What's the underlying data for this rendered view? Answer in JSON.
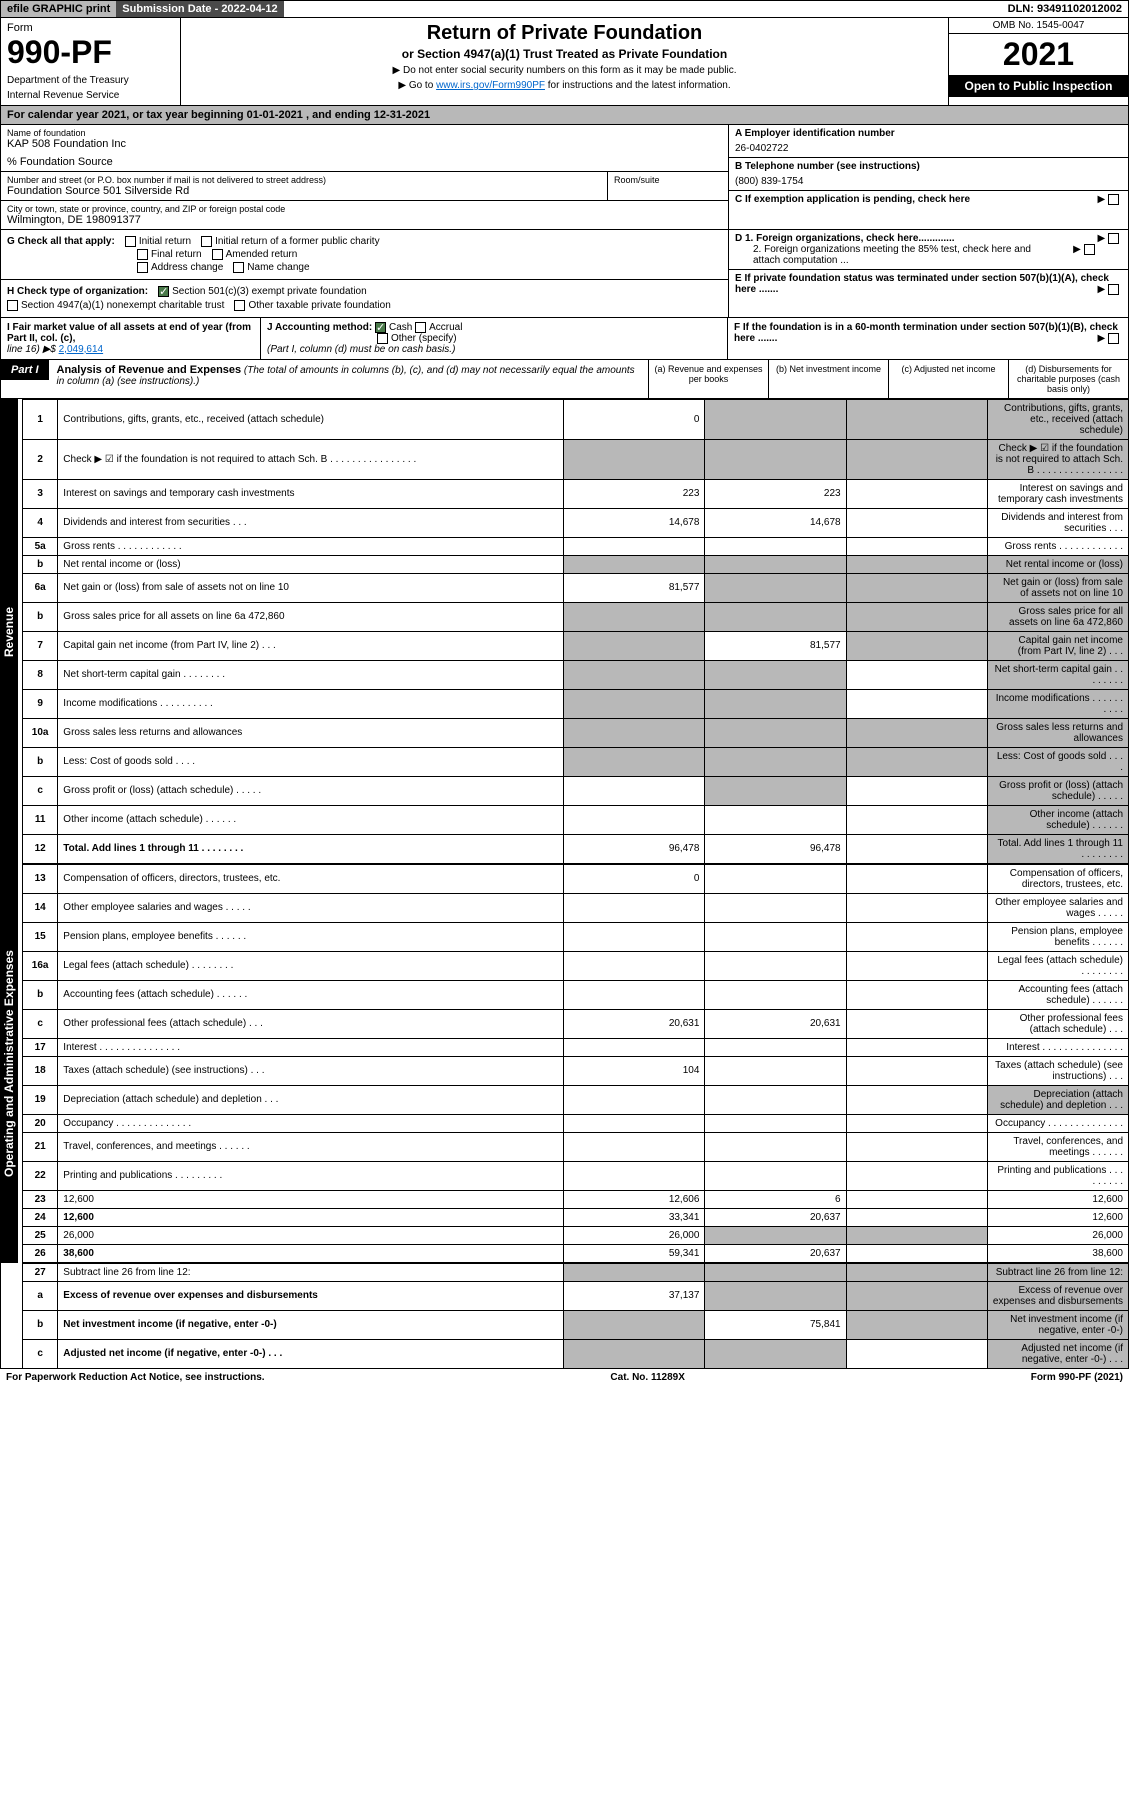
{
  "topbar": {
    "efile": "efile GRAPHIC print",
    "sub_lbl": "Submission Date - 2022-04-12",
    "dln": "DLN: 93491102012002"
  },
  "header": {
    "form_word": "Form",
    "form_no": "990-PF",
    "dept": "Department of the Treasury",
    "irs": "Internal Revenue Service",
    "title": "Return of Private Foundation",
    "subtitle": "or Section 4947(a)(1) Trust Treated as Private Foundation",
    "note1": "▶ Do not enter social security numbers on this form as it may be made public.",
    "note2_pre": "▶ Go to ",
    "note2_link": "www.irs.gov/Form990PF",
    "note2_post": " for instructions and the latest information.",
    "omb": "OMB No. 1545-0047",
    "year": "2021",
    "open": "Open to Public Inspection"
  },
  "calyear": "For calendar year 2021, or tax year beginning 01-01-2021                           , and ending 12-31-2021",
  "org": {
    "name_lbl": "Name of foundation",
    "name": "KAP 508 Foundation Inc",
    "src": "% Foundation Source",
    "addr_lbl": "Number and street (or P.O. box number if mail is not delivered to street address)",
    "addr": "Foundation Source 501 Silverside Rd",
    "room_lbl": "Room/suite",
    "city_lbl": "City or town, state or province, country, and ZIP or foreign postal code",
    "city": "Wilmington, DE  198091377",
    "a_lbl": "A Employer identification number",
    "ein": "26-0402722",
    "b_lbl": "B Telephone number (see instructions)",
    "phone": "(800) 839-1754",
    "c_lbl": "C If exemption application is pending, check here",
    "d1": "D 1. Foreign organizations, check here.............",
    "d2": "2. Foreign organizations meeting the 85% test, check here and attach computation ...",
    "e_lbl": "E  If private foundation status was terminated under section 507(b)(1)(A), check here .......",
    "f_lbl": "F  If the foundation is in a 60-month termination under section 507(b)(1)(B), check here ......."
  },
  "g": {
    "lbl": "G Check all that apply:",
    "o1": "Initial return",
    "o2": "Initial return of a former public charity",
    "o3": "Final return",
    "o4": "Amended return",
    "o5": "Address change",
    "o6": "Name change"
  },
  "h": {
    "lbl": "H Check type of organization:",
    "o1": "Section 501(c)(3) exempt private foundation",
    "o2": "Section 4947(a)(1) nonexempt charitable trust",
    "o3": "Other taxable private foundation"
  },
  "i": {
    "lbl": "I Fair market value of all assets at end of year (from Part II, col. (c),",
    "line": "line 16) ▶$",
    "val": "2,049,614"
  },
  "j": {
    "lbl": "J Accounting method:",
    "o1": "Cash",
    "o2": "Accrual",
    "o3": "Other (specify)",
    "note": "(Part I, column (d) must be on cash basis.)"
  },
  "part1": {
    "lbl": "Part I",
    "title": "Analysis of Revenue and Expenses",
    "note": " (The total of amounts in columns (b), (c), and (d) may not necessarily equal the amounts in column (a) (see instructions).)",
    "ca": "(a)   Revenue and expenses per books",
    "cb": "(b)   Net investment income",
    "cc": "(c)   Adjusted net income",
    "cd": "(d)   Disbursements for charitable purposes (cash basis only)"
  },
  "side": {
    "rev": "Revenue",
    "exp": "Operating and Administrative Expenses"
  },
  "rows": [
    {
      "n": "1",
      "d": "Contributions, gifts, grants, etc., received (attach schedule)",
      "a": "0",
      "shade": [
        "b",
        "c",
        "d"
      ]
    },
    {
      "n": "2",
      "d": "Check ▶ ☑ if the foundation is not required to attach Sch. B   .  .  .  .  .  .  .  .  .  .  .  .  .  .  .  .",
      "shade": [
        "a",
        "b",
        "c",
        "d"
      ],
      "bold_not": true
    },
    {
      "n": "3",
      "d": "Interest on savings and temporary cash investments",
      "a": "223",
      "b": "223"
    },
    {
      "n": "4",
      "d": "Dividends and interest from securities    .  .  .",
      "a": "14,678",
      "b": "14,678"
    },
    {
      "n": "5a",
      "d": "Gross rents    .  .  .  .  .  .  .  .  .  .  .  ."
    },
    {
      "n": "b",
      "d": "Net rental income or (loss)  ",
      "shade": [
        "a",
        "b",
        "c",
        "d"
      ]
    },
    {
      "n": "6a",
      "d": "Net gain or (loss) from sale of assets not on line 10",
      "a": "81,577",
      "shade": [
        "b",
        "c",
        "d"
      ]
    },
    {
      "n": "b",
      "d": "Gross sales price for all assets on line 6a                472,860",
      "shade": [
        "a",
        "b",
        "c",
        "d"
      ]
    },
    {
      "n": "7",
      "d": "Capital gain net income (from Part IV, line 2)   .  .  .",
      "b": "81,577",
      "shade": [
        "a",
        "c",
        "d"
      ]
    },
    {
      "n": "8",
      "d": "Net short-term capital gain .  .  .  .  .  .  .  .",
      "shade": [
        "a",
        "b",
        "d"
      ]
    },
    {
      "n": "9",
      "d": "Income modifications .  .  .  .  .  .  .  .  .  .",
      "shade": [
        "a",
        "b",
        "d"
      ]
    },
    {
      "n": "10a",
      "d": "Gross sales less returns and allowances",
      "shade": [
        "a",
        "b",
        "c",
        "d"
      ]
    },
    {
      "n": "b",
      "d": "Less: Cost of goods sold    .  .  .  .",
      "shade": [
        "a",
        "b",
        "c",
        "d"
      ]
    },
    {
      "n": "c",
      "d": "Gross profit or (loss) (attach schedule)    .  .  .  .  .",
      "shade": [
        "b",
        "d"
      ]
    },
    {
      "n": "11",
      "d": "Other income (attach schedule)   .  .  .  .  .  .",
      "shade": [
        "d"
      ]
    },
    {
      "n": "12",
      "d": "Total. Add lines 1 through 11   .  .  .  .  .  .  .  .",
      "a": "96,478",
      "b": "96,478",
      "bold": true,
      "shade": [
        "d"
      ]
    }
  ],
  "exp_rows": [
    {
      "n": "13",
      "d": "Compensation of officers, directors, trustees, etc.",
      "a": "0"
    },
    {
      "n": "14",
      "d": "Other employee salaries and wages   .  .  .  .  ."
    },
    {
      "n": "15",
      "d": "Pension plans, employee benefits .  .  .  .  .  ."
    },
    {
      "n": "16a",
      "d": "Legal fees (attach schedule) .  .  .  .  .  .  .  ."
    },
    {
      "n": "b",
      "d": "Accounting fees (attach schedule) .  .  .  .  .  ."
    },
    {
      "n": "c",
      "d": "Other professional fees (attach schedule)   .  .  .",
      "a": "20,631",
      "b": "20,631"
    },
    {
      "n": "17",
      "d": "Interest .  .  .  .  .  .  .  .  .  .  .  .  .  .  ."
    },
    {
      "n": "18",
      "d": "Taxes (attach schedule) (see instructions)     .  .  .",
      "a": "104"
    },
    {
      "n": "19",
      "d": "Depreciation (attach schedule) and depletion   .  .  .",
      "shade": [
        "d"
      ]
    },
    {
      "n": "20",
      "d": "Occupancy .  .  .  .  .  .  .  .  .  .  .  .  .  ."
    },
    {
      "n": "21",
      "d": "Travel, conferences, and meetings .  .  .  .  .  ."
    },
    {
      "n": "22",
      "d": "Printing and publications .  .  .  .  .  .  .  .  ."
    },
    {
      "n": "23",
      "d": "12,600",
      "a": "12,606",
      "b": "6"
    },
    {
      "n": "24",
      "d": "12,600",
      "a": "33,341",
      "b": "20,637",
      "bold": true
    },
    {
      "n": "25",
      "d": "26,000",
      "a": "26,000",
      "shade": [
        "b",
        "c"
      ]
    },
    {
      "n": "26",
      "d": "38,600",
      "a": "59,341",
      "b": "20,637",
      "bold": true
    }
  ],
  "bottom_rows": [
    {
      "n": "27",
      "d": "Subtract line 26 from line 12:",
      "shade": [
        "a",
        "b",
        "c",
        "d"
      ]
    },
    {
      "n": "a",
      "d": "Excess of revenue over expenses and disbursements",
      "a": "37,137",
      "bold": true,
      "shade": [
        "b",
        "c",
        "d"
      ]
    },
    {
      "n": "b",
      "d": "Net investment income (if negative, enter -0-)",
      "b": "75,841",
      "bold": true,
      "shade": [
        "a",
        "c",
        "d"
      ]
    },
    {
      "n": "c",
      "d": "Adjusted net income (if negative, enter -0-)  .  .  .",
      "bold": true,
      "shade": [
        "a",
        "b",
        "d"
      ]
    }
  ],
  "footer": {
    "left": "For Paperwork Reduction Act Notice, see instructions.",
    "mid": "Cat. No. 11289X",
    "right": "Form 990-PF (2021)"
  },
  "colors": {
    "shade": "#b8b8b8",
    "black": "#000000",
    "link": "#0066cc"
  }
}
